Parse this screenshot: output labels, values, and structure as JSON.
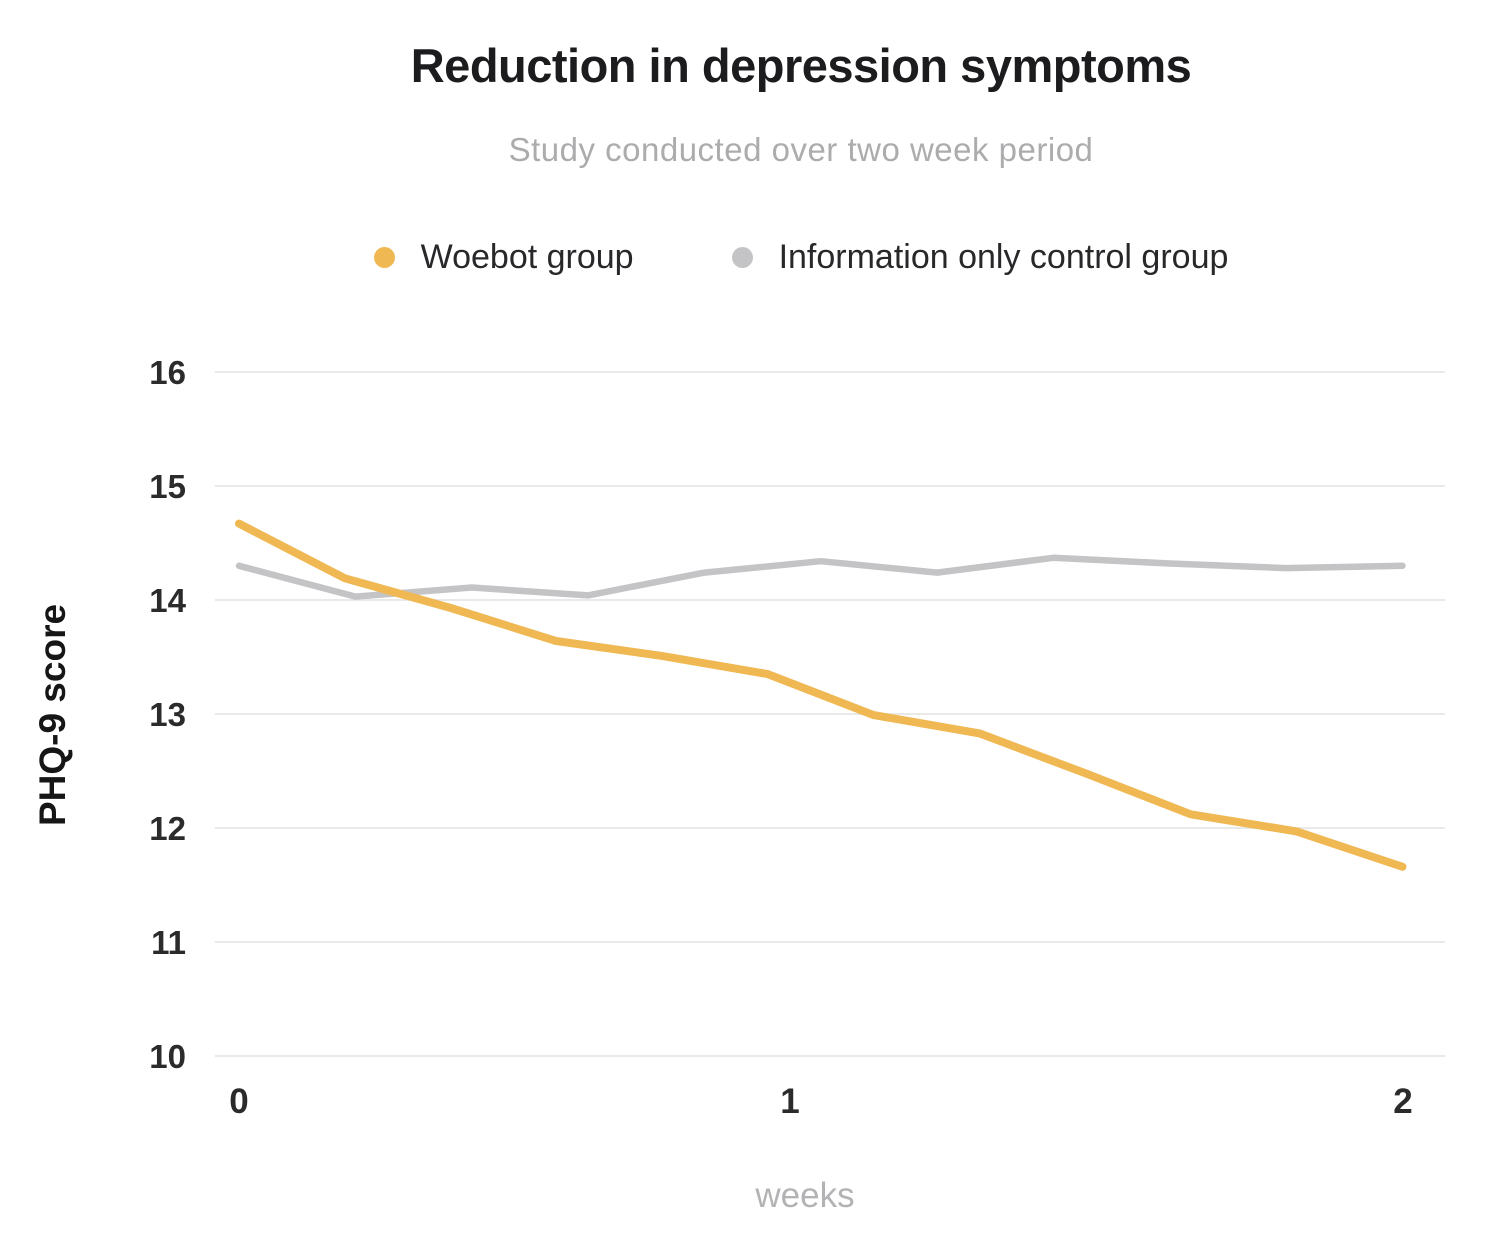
{
  "page": {
    "background": "#ffffff"
  },
  "chart_data": {
    "type": "line",
    "title": "Reduction in depression symptoms",
    "subtitle": "Study conducted over two week period",
    "xlabel": "weeks",
    "ylabel": "PHQ-9 score",
    "xlim": [
      0,
      2
    ],
    "ylim": [
      10,
      16
    ],
    "yticks": [
      "16",
      "15",
      "14",
      "13",
      "12",
      "11",
      "10"
    ],
    "ytick_values": [
      16,
      15,
      14,
      13,
      12,
      11,
      10
    ],
    "xticks": [
      "0",
      "1",
      "2"
    ],
    "xtick_values": [
      0,
      1,
      2
    ],
    "grid": true,
    "legend_position": "top",
    "series": [
      {
        "name": "Woebot group",
        "color": "#efb852",
        "x": [
          0,
          0.182,
          0.364,
          0.545,
          0.727,
          0.909,
          1.091,
          1.273,
          1.455,
          1.636,
          1.818,
          2
        ],
        "values": [
          14.67,
          14.19,
          13.93,
          13.64,
          13.51,
          13.35,
          12.99,
          12.83,
          12.48,
          12.12,
          11.97,
          11.66
        ]
      },
      {
        "name": "Information only control group",
        "color": "#c4c4c6",
        "x": [
          0,
          0.2,
          0.4,
          0.6,
          0.8,
          1,
          1.2,
          1.4,
          1.6,
          1.8,
          2
        ],
        "values": [
          14.3,
          14.03,
          14.11,
          14.04,
          14.24,
          14.34,
          14.24,
          14.37,
          14.32,
          14.28,
          14.3
        ]
      }
    ],
    "colors": {
      "title": "#1c1c1e",
      "subtitle": "#acacae",
      "tick_label": "#2b2b2b",
      "muted_axis_label": "#b3b3b6",
      "gridline": "#e9e9ea",
      "background": "#ffffff"
    }
  }
}
